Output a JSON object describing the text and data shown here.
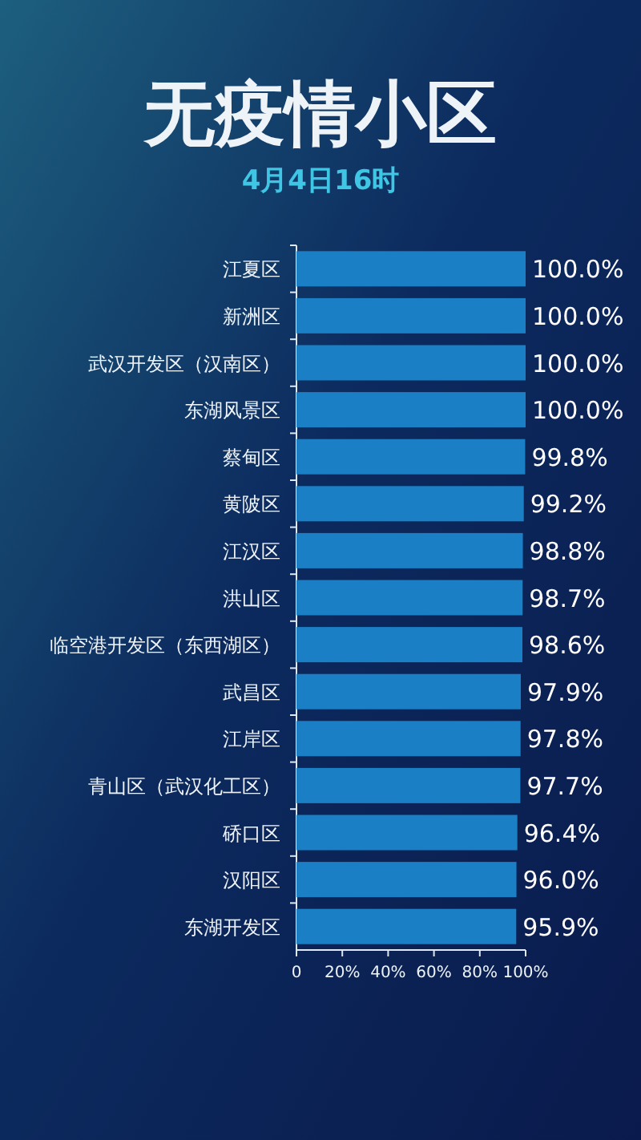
{
  "chart_data": {
    "type": "bar",
    "orientation": "horizontal",
    "title": "无疫情小区",
    "subtitle": "4月4日16时",
    "categories": [
      "江夏区",
      "新洲区",
      "武汉开发区（汉南区）",
      "东湖风景区",
      "蔡甸区",
      "黄陂区",
      "江汉区",
      "洪山区",
      "临空港开发区（东西湖区）",
      "武昌区",
      "江岸区",
      "青山区（武汉化工区）",
      "硚口区",
      "汉阳区",
      "东湖开发区"
    ],
    "values": [
      100.0,
      100.0,
      100.0,
      100.0,
      99.8,
      99.2,
      98.8,
      98.7,
      98.6,
      97.9,
      97.8,
      97.7,
      96.4,
      96.0,
      95.9
    ],
    "value_labels": [
      "100.0%",
      "100.0%",
      "100.0%",
      "100.0%",
      "99.8%",
      "99.2%",
      "98.8%",
      "98.7%",
      "98.6%",
      "97.9%",
      "97.8%",
      "97.7%",
      "96.4%",
      "96.0%",
      "95.9%"
    ],
    "color": "#1a7fc4",
    "xlim": [
      0,
      100
    ],
    "xticks": [
      0,
      {
        "value": 20,
        "label": "20%"
      },
      {
        "value": 40,
        "label": "40%"
      },
      {
        "value": 60,
        "label": "60%"
      },
      {
        "value": 80,
        "label": "80%"
      },
      {
        "value": 100,
        "label": "100%"
      }
    ]
  }
}
